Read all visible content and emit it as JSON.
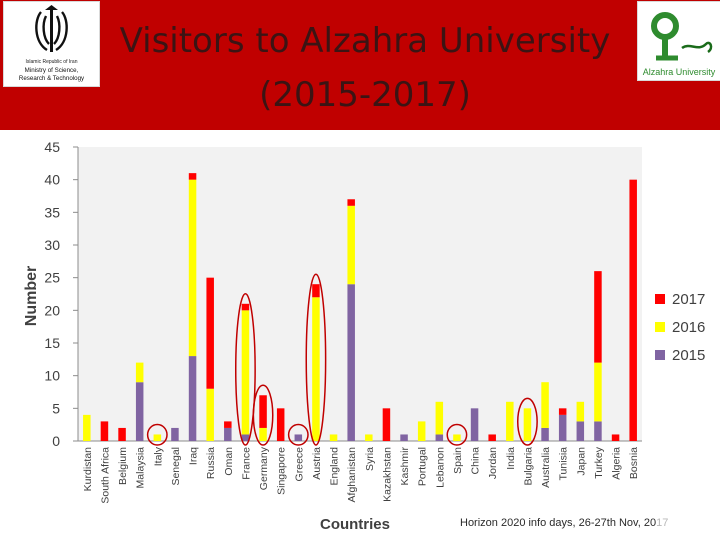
{
  "header": {
    "title_line1": "Visitors to Alzahra University",
    "title_line2": "(2015-2017)",
    "left_logo": {
      "emblem": "iran-emblem-icon",
      "line1": "Islamic Republic of Iran",
      "line2": "Ministry of Science,",
      "line3": "Research & Technology"
    },
    "right_logo": {
      "mark": "alzahra-logo-icon",
      "caption": "Alzahra University"
    }
  },
  "footer": {
    "note_main": "Horizon 2020 info days, 26-27th Nov, 20",
    "note_fade": "17"
  },
  "colors": {
    "header": "#c00000",
    "s2015": "#8064a2",
    "s2016": "#ffff00",
    "s2017": "#ff0000",
    "highlight": "#c00000"
  },
  "chart_data": {
    "type": "bar",
    "stacked": true,
    "xlabel": "Countries",
    "ylabel": "Number",
    "ylim": [
      0,
      45
    ],
    "yticks": [
      0,
      5,
      10,
      15,
      20,
      25,
      30,
      35,
      40,
      45
    ],
    "grid": false,
    "legend": "right",
    "categories": [
      "Kurdistan",
      "South Africa",
      "Belgium",
      "Malaysia",
      "Italy",
      "Senegal",
      "Iraq",
      "Russia",
      "Oman",
      "France",
      "Germany",
      "Singapore",
      "Greece",
      "Austria",
      "England",
      "Afghanistan",
      "Syria",
      "Kazakhstan",
      "Kashmir",
      "Portugal",
      "Lebanon",
      "Spain",
      "China",
      "Jordan",
      "India",
      "Bulgaria",
      "Australia",
      "Tunisia",
      "Japan",
      "Turkey",
      "Algeria",
      "Bosnia"
    ],
    "series": [
      {
        "name": "2015",
        "values": [
          0,
          0,
          0,
          9,
          0,
          2,
          13,
          0,
          2,
          1,
          0,
          0,
          1,
          0,
          0,
          24,
          0,
          0,
          1,
          0,
          1,
          0,
          5,
          0,
          0,
          0,
          2,
          4,
          3,
          3,
          0,
          0
        ]
      },
      {
        "name": "2016",
        "values": [
          4,
          0,
          0,
          3,
          1,
          0,
          27,
          8,
          0,
          19,
          2,
          0,
          0,
          22,
          1,
          12,
          1,
          0,
          0,
          3,
          5,
          1,
          0,
          0,
          6,
          5,
          7,
          0,
          3,
          9,
          0,
          0
        ]
      },
      {
        "name": "2017",
        "values": [
          0,
          3,
          2,
          0,
          0,
          0,
          1,
          17,
          1,
          1,
          5,
          5,
          0,
          2,
          0,
          1,
          0,
          5,
          0,
          0,
          0,
          0,
          0,
          1,
          0,
          0,
          0,
          1,
          0,
          14,
          1,
          40
        ]
      }
    ],
    "highlighted": [
      "Italy",
      "France",
      "Germany",
      "Greece",
      "Austria",
      "Spain",
      "Bulgaria"
    ]
  }
}
